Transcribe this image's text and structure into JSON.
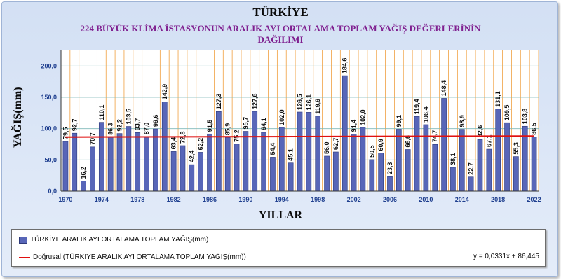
{
  "titles": {
    "main": "TÜRKİYE",
    "line2": "224 BÜYÜK KLİMA İSTASYONUN ARALIK  AYI  ORTALAMA TOPLAM  YAĞIŞ DEĞERLERİNİN",
    "line3": "DAĞILIMI"
  },
  "legend": {
    "bar_label": "TÜRKİYE ARALIK AYI ORTALAMA TOPLAM YAĞIŞ(mm)",
    "line_label": "Doğrusal (TÜRKİYE ARALIK AYI ORTALAMA TOPLAM YAĞIŞ(mm))",
    "equation": "y = 0,0331x + 86,445"
  },
  "chart_data": {
    "type": "bar",
    "xlabel": "YILLAR",
    "ylabel": "YAĞIŞ(mm)",
    "ylim": [
      0,
      225
    ],
    "y_ticks": [
      "0,0",
      "50,0",
      "100,0",
      "150,0",
      "200,0"
    ],
    "x_ticks": [
      "1970",
      "1974",
      "1978",
      "1982",
      "1986",
      "1990",
      "1994",
      "1998",
      "2002",
      "2006",
      "2010",
      "2014",
      "2018",
      "2022"
    ],
    "grid": true,
    "legend_position": "bottom",
    "categories": [
      "1970",
      "1971",
      "1972",
      "1973",
      "1974",
      "1975",
      "1976",
      "1977",
      "1978",
      "1979",
      "1980",
      "1981",
      "1982",
      "1983",
      "1984",
      "1985",
      "1986",
      "1987",
      "1988",
      "1989",
      "1990",
      "1991",
      "1992",
      "1993",
      "1994",
      "1995",
      "1996",
      "1997",
      "1998",
      "1999",
      "2000",
      "2001",
      "2002",
      "2003",
      "2004",
      "2005",
      "2006",
      "2007",
      "2008",
      "2009",
      "2010",
      "2011",
      "2012",
      "2013",
      "2014",
      "2015",
      "2016",
      "2017",
      "2018",
      "2019",
      "2020",
      "2021",
      "2022"
    ],
    "values": [
      79.5,
      92.7,
      16.2,
      70.7,
      110.1,
      86.3,
      92.2,
      103.5,
      93.7,
      87.0,
      99.6,
      142.9,
      63.4,
      72.8,
      42.4,
      62.2,
      91.5,
      127.3,
      85.9,
      75.2,
      95.7,
      127.6,
      94.1,
      54.4,
      102.0,
      45.1,
      126.5,
      126.1,
      119.9,
      56.0,
      62.7,
      184.6,
      91.4,
      102.0,
      50.5,
      60.9,
      23.3,
      99.1,
      66.6,
      119.4,
      106.4,
      74.7,
      148.4,
      38.1,
      98.9,
      22.7,
      82.6,
      67.1,
      131.1,
      109.5,
      55.3,
      103.8,
      86.5
    ],
    "value_labels": [
      "79,5",
      "92,7",
      "16,2",
      "70,7",
      "110,1",
      "86,3",
      "92,2",
      "103,5",
      "93,7",
      "87,0",
      "99,6",
      "142,9",
      "63,4",
      "72,8",
      "42,4",
      "62,2",
      "91,5",
      "127,3",
      "85,9",
      "75,2",
      "95,7",
      "127,6",
      "94,1",
      "54,4",
      "102,0",
      "45,1",
      "126,5",
      "126,1",
      "119,9",
      "56,0",
      "62,7",
      "184,6",
      "91,4",
      "102,0",
      "50,5",
      "60,9",
      "23,3",
      "99,1",
      "66,6",
      "119,4",
      "106,4",
      "74,7",
      "148,4",
      "38,1",
      "98,9",
      "22,7",
      "82,6",
      "67,1",
      "131,1",
      "109,5",
      "55,3",
      "103,8",
      "86,5"
    ],
    "trendline": {
      "slope": 0.0331,
      "intercept": 86.445
    },
    "colors": {
      "bar": "#5866b8",
      "bar_edge": "#2e3a7a",
      "trend": "#e01010",
      "vgrid": "#f0a040",
      "hgrid": "#7fb8b8",
      "plot_bg": "#ffffff",
      "tick_text": "#1f3f8f",
      "value_text": "#111111"
    }
  }
}
